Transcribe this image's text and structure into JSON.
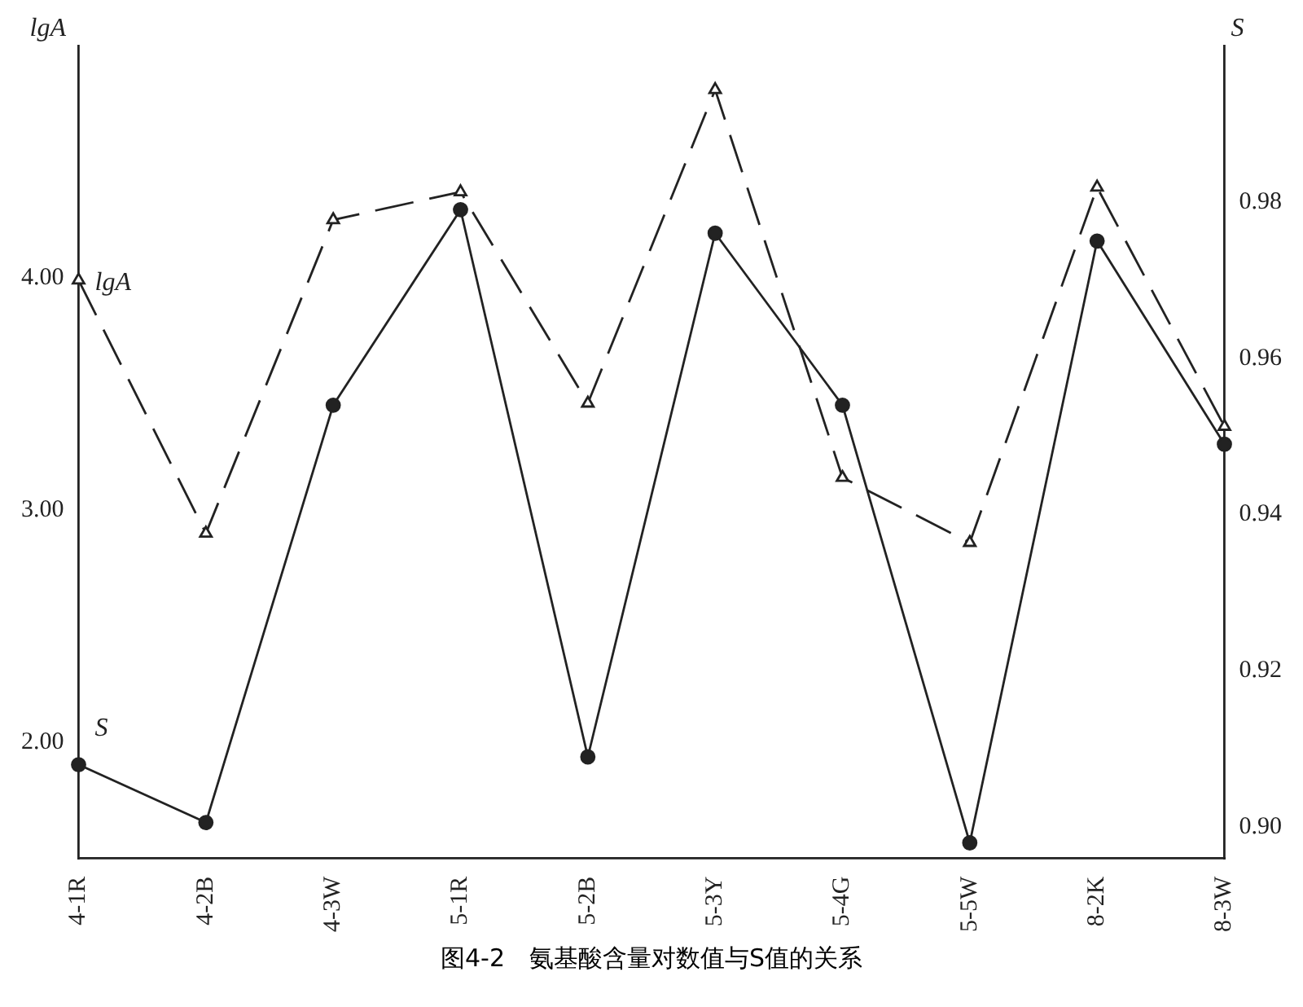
{
  "chart_data": {
    "type": "line",
    "ylabel": "lgA",
    "y2label": "S",
    "categories": [
      "4-1R",
      "4-2B",
      "4-3W",
      "5-1R",
      "5-2B",
      "5-3Y",
      "5-4G",
      "5-5W",
      "8-2K",
      "8-3W"
    ],
    "series": [
      {
        "name": "lgA",
        "color": "#222222",
        "marker": "triangle",
        "line_style": "dashed",
        "values": [
          3.99,
          2.9,
          4.25,
          4.37,
          3.46,
          4.81,
          3.14,
          2.86,
          4.39,
          3.36
        ]
      },
      {
        "name": "S",
        "color": "#222222",
        "marker": "circle",
        "line_style": "solid",
        "axis": "y2",
        "values": [
          0.908,
          0.9006,
          0.954,
          0.979,
          0.909,
          0.976,
          0.954,
          0.898,
          0.975,
          0.949
        ]
      }
    ],
    "ylim": [
      1.5,
      5.0
    ],
    "yticks": [
      {
        "value": 2,
        "label": "2.00"
      },
      {
        "value": 3,
        "label": "3.00"
      },
      {
        "value": 4,
        "label": "4.00"
      }
    ],
    "y2lim": [
      0.896,
      1.0
    ],
    "y2ticks": [
      {
        "value": 0.9,
        "label": "0.90"
      },
      {
        "value": 0.92,
        "label": "0.92"
      },
      {
        "value": 0.94,
        "label": "0.94"
      },
      {
        "value": 0.96,
        "label": "0.96"
      },
      {
        "value": 0.98,
        "label": "0.98"
      }
    ],
    "grid": false,
    "legend": false,
    "annotations": [
      "图4-2　氨基酸含量对数值与S值的关系"
    ]
  }
}
